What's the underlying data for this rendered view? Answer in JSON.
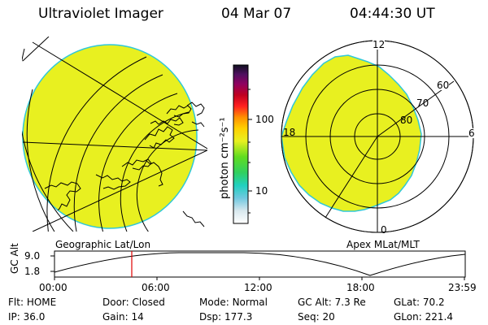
{
  "header": {
    "title": "Ultraviolet Imager",
    "date": "04 Mar 07",
    "time": "04:44:30 UT"
  },
  "colorbar": {
    "unit_label": "photon cm⁻²s⁻¹",
    "ticks": [
      "100",
      "10"
    ],
    "scale": "log"
  },
  "left_panel": {
    "caption": "Geographic Lat/Lon"
  },
  "right_panel": {
    "caption": "Apex MLat/MLT",
    "mlt_labels": {
      "top": "12",
      "right": "6",
      "bottom": "0",
      "left": "18"
    },
    "mlat_labels": [
      "60",
      "70",
      "80"
    ]
  },
  "altitude_plot": {
    "ylabel": "GC Alt",
    "yticks": [
      "9.0",
      "1.8"
    ],
    "xticks": [
      "00:00",
      "06:00",
      "12:00",
      "18:00",
      "23:59"
    ],
    "marker_time": "04:44:30"
  },
  "status": {
    "row1": [
      {
        "label": "Flt:",
        "value": "HOME"
      },
      {
        "label": "Door:",
        "value": "Closed"
      },
      {
        "label": "Mode:",
        "value": "Normal"
      },
      {
        "label": "GC Alt:",
        "value": "7.3 Re"
      },
      {
        "label": "GLat:",
        "value": "70.2"
      }
    ],
    "row2": [
      {
        "label": "IP:",
        "value": "36.0"
      },
      {
        "label": "Gain:",
        "value": "14"
      },
      {
        "label": "Dsp:",
        "value": "177.3"
      },
      {
        "label": "Seq:",
        "value": "20"
      },
      {
        "label": "GLon:",
        "value": "221.4"
      }
    ]
  },
  "colors": {
    "fill": "#e8f020",
    "edge": "#30c8d8",
    "marker": "#e00000"
  }
}
